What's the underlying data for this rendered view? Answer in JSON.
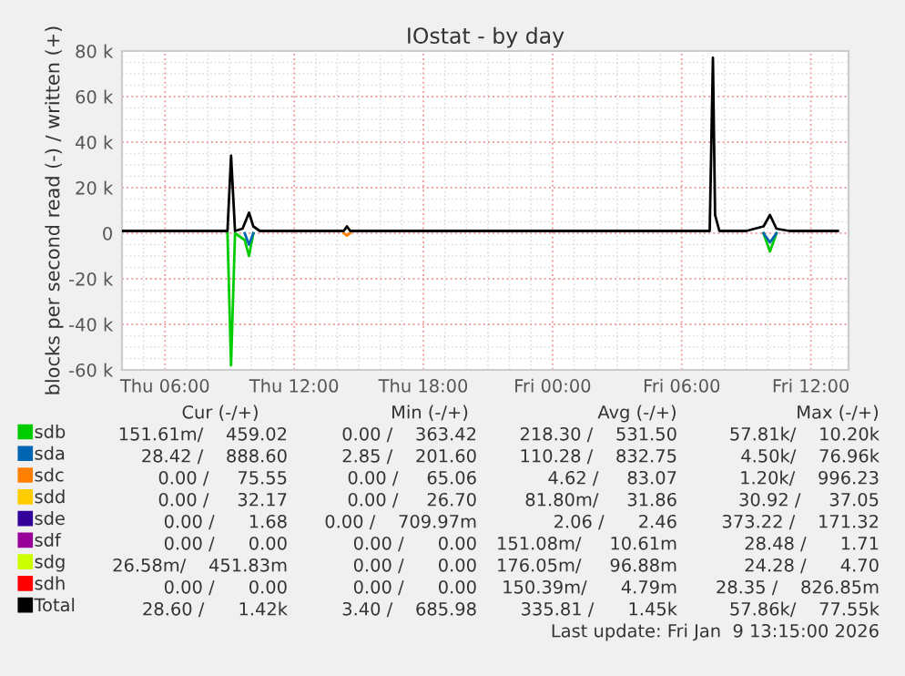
{
  "chart_data": {
    "type": "line",
    "title": "IOstat - by day",
    "ylabel": "blocks per second read (-) / written (+)",
    "xlim": [
      "2026-01-08T04:00",
      "2026-01-09T13:45"
    ],
    "xticks": [
      {
        "value": "2026-01-08T06:00",
        "label": "Thu 06:00"
      },
      {
        "value": "2026-01-08T12:00",
        "label": "Thu 12:00"
      },
      {
        "value": "2026-01-08T18:00",
        "label": "Thu 18:00"
      },
      {
        "value": "2026-01-09T00:00",
        "label": "Fri 00:00"
      },
      {
        "value": "2026-01-09T06:00",
        "label": "Fri 06:00"
      },
      {
        "value": "2026-01-09T12:00",
        "label": "Fri 12:00"
      }
    ],
    "ylim": [
      -60000,
      80000
    ],
    "yticks": [
      {
        "value": 80000,
        "label": "80 k"
      },
      {
        "value": 60000,
        "label": "60 k"
      },
      {
        "value": 40000,
        "label": "40 k"
      },
      {
        "value": 20000,
        "label": "20 k"
      },
      {
        "value": 0,
        "label": "0"
      },
      {
        "value": -20000,
        "label": "-20 k"
      },
      {
        "value": -40000,
        "label": "-40 k"
      },
      {
        "value": -60000,
        "label": "-60 k"
      }
    ],
    "grid": true,
    "legend": "bottom",
    "marker": "none",
    "line_style": "solid",
    "series": [
      {
        "name": "sdb",
        "color": "#00cc00",
        "x": [
          "2026-01-08T08:54",
          "2026-01-08T09:04",
          "2026-01-08T09:15",
          "2026-01-08T09:42",
          "2026-01-08T09:54",
          "2026-01-08T10:06"
        ],
        "values": [
          0,
          -58000,
          0,
          -3000,
          -10000,
          0
        ]
      },
      {
        "color": "#00cc00",
        "x": [
          "2026-01-09T09:48",
          "2026-01-09T10:06",
          "2026-01-09T10:24"
        ],
        "values": [
          0,
          -8000,
          0
        ]
      },
      {
        "name": "sda",
        "color": "#0066b3",
        "x": [
          "2026-01-08T09:42",
          "2026-01-08T09:54",
          "2026-01-08T10:06"
        ],
        "values": [
          0,
          -5000,
          0
        ]
      },
      {
        "color": "#0066b3",
        "x": [
          "2026-01-09T09:48",
          "2026-01-09T10:06",
          "2026-01-09T10:24"
        ],
        "values": [
          0,
          -4000,
          0
        ]
      },
      {
        "name": "sdc",
        "color": "#ff8000",
        "x": [
          "2026-01-08T14:18",
          "2026-01-08T14:27",
          "2026-01-08T14:36"
        ],
        "values": [
          0,
          -1000,
          0
        ]
      },
      {
        "name": "sdd",
        "color": "#ffcc00"
      },
      {
        "name": "sde",
        "color": "#330099"
      },
      {
        "name": "sdf",
        "color": "#990099"
      },
      {
        "name": "sdg",
        "color": "#ccff00"
      },
      {
        "name": "sdh",
        "color": "#ff0000"
      },
      {
        "name": "Total",
        "color": "#000000",
        "x": [
          "2026-01-08T04:00",
          "2026-01-08T08:54",
          "2026-01-08T09:04",
          "2026-01-08T09:15",
          "2026-01-08T09:36",
          "2026-01-08T09:54",
          "2026-01-08T10:06",
          "2026-01-08T10:24",
          "2026-01-08T14:18",
          "2026-01-08T14:27",
          "2026-01-08T14:36",
          "2026-01-09T07:18",
          "2026-01-09T07:27",
          "2026-01-09T07:33",
          "2026-01-09T07:45",
          "2026-01-09T09:00",
          "2026-01-09T09:48",
          "2026-01-09T10:06",
          "2026-01-09T10:24",
          "2026-01-09T11:00",
          "2026-01-09T13:15"
        ],
        "values": [
          1000,
          1000,
          34000,
          1000,
          2000,
          9000,
          3000,
          1000,
          1000,
          3000,
          1000,
          1000,
          77000,
          8000,
          1000,
          1000,
          3000,
          8000,
          2000,
          1000,
          1000
        ]
      }
    ],
    "annotations": [
      "Cur (-/+)",
      "Min (-/+)",
      "Avg (-/+)",
      "Max (-/+)",
      "151.61m/    459.02",
      "0.00 /    363.42",
      "218.30 /    531.50",
      "57.81k/    10.20k",
      "28.42 /    888.60",
      "2.85 /    201.60",
      "110.28 /    832.75",
      "4.50k/    76.96k",
      "0.00 /     75.55",
      "0.00 /     65.06",
      "4.62 /     83.07",
      "1.20k/    996.23",
      "0.00 /     32.17",
      "0.00 /     26.70",
      "81.80m/     31.86",
      "30.92 /     37.05",
      "0.00 /      1.68",
      "0.00 /    709.97m",
      "2.06 /      2.46",
      "373.22 /    171.32",
      "0.00 /      0.00",
      "0.00 /      0.00",
      "151.08m/     10.61m",
      "28.48 /      1.71",
      "26.58m/    451.83m",
      "0.00 /      0.00",
      "176.05m/     96.88m",
      "24.28 /      4.70",
      "0.00 /      0.00",
      "0.00 /      0.00",
      "150.39m/      4.79m",
      "28.35 /    826.85m",
      "28.60 /      1.42k",
      "3.40 /    685.98",
      "335.81 /      1.45k",
      "57.86k/    77.55k",
      "Last update: Fri Jan  9 13:15:00 2026"
    ]
  }
}
